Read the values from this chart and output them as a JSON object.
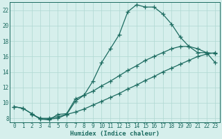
{
  "title": "",
  "xlabel": "Humidex (Indice chaleur)",
  "bg_color": "#d6efec",
  "line_color": "#1c6b60",
  "grid_color": "#afd8d2",
  "xlim": [
    -0.5,
    23.5
  ],
  "ylim": [
    7.5,
    23.0
  ],
  "xticks": [
    0,
    1,
    2,
    3,
    4,
    5,
    6,
    7,
    8,
    9,
    10,
    11,
    12,
    13,
    14,
    15,
    16,
    17,
    18,
    19,
    20,
    21,
    22,
    23
  ],
  "yticks": [
    8,
    10,
    12,
    14,
    16,
    18,
    20,
    22
  ],
  "line1_x": [
    0,
    1,
    2,
    3,
    4,
    5,
    6,
    7,
    8,
    9,
    10,
    11,
    12,
    13,
    14,
    15,
    16,
    17,
    18,
    19,
    20,
    21,
    22,
    23
  ],
  "line1_y": [
    9.5,
    9.3,
    8.6,
    7.9,
    7.8,
    8.5,
    8.6,
    10.5,
    11.0,
    12.8,
    15.2,
    17.0,
    18.8,
    21.8,
    22.7,
    22.4,
    22.4,
    21.5,
    20.2,
    18.5,
    17.3,
    16.5,
    16.5,
    16.4
  ],
  "line2_x": [
    0,
    1,
    2,
    3,
    4,
    5,
    6,
    7,
    8,
    9,
    10,
    11,
    12,
    13,
    14,
    15,
    16,
    17,
    18,
    19,
    20,
    21,
    22,
    23
  ],
  "line2_y": [
    9.5,
    9.3,
    8.6,
    7.9,
    7.9,
    8.0,
    8.5,
    10.2,
    11.0,
    11.5,
    12.2,
    12.8,
    13.5,
    14.2,
    14.8,
    15.5,
    16.0,
    16.5,
    17.0,
    17.3,
    17.3,
    17.0,
    16.5,
    15.2
  ],
  "line3_x": [
    2,
    3,
    4,
    5,
    6,
    7,
    8,
    9,
    10,
    11,
    12,
    13,
    14,
    15,
    16,
    17,
    18,
    19,
    20,
    21,
    22,
    23
  ],
  "line3_y": [
    8.5,
    8.0,
    8.0,
    8.2,
    8.5,
    8.8,
    9.2,
    9.7,
    10.2,
    10.7,
    11.2,
    11.8,
    12.3,
    12.9,
    13.4,
    14.0,
    14.5,
    15.0,
    15.5,
    16.0,
    16.3,
    16.5
  ]
}
